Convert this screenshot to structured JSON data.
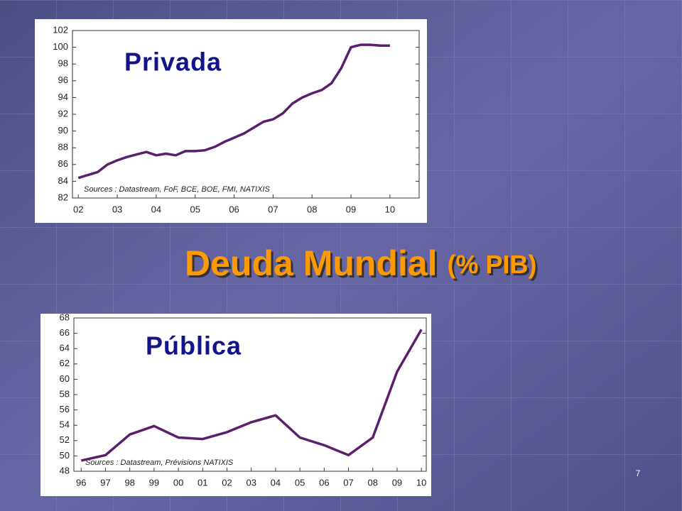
{
  "slide": {
    "title": "Deuda Mundial",
    "title_suffix": "(% PIB)",
    "page_number": "7"
  },
  "chart_data": [
    {
      "type": "line",
      "title": "Privada",
      "source": "Sources : Datastream, FoF, BCE, BOE, FMI, NATIXIS",
      "x": [
        2,
        2.5,
        2.75,
        3,
        3.25,
        3.5,
        3.75,
        4,
        4.25,
        4.5,
        4.75,
        5,
        5.25,
        5.5,
        5.75,
        6,
        6.25,
        6.5,
        6.75,
        7,
        7.25,
        7.5,
        7.75,
        8,
        8.25,
        8.5,
        8.75,
        9,
        9.25,
        9.5,
        9.75,
        10
      ],
      "series": [
        {
          "color": "#5b1f6b",
          "values": [
            84.4,
            85.1,
            86.0,
            86.5,
            86.9,
            87.2,
            87.5,
            87.1,
            87.3,
            87.1,
            87.6,
            87.6,
            87.7,
            88.1,
            88.7,
            89.2,
            89.7,
            90.4,
            91.1,
            91.4,
            92.1,
            93.3,
            94.0,
            94.5,
            94.9,
            95.7,
            97.5,
            100.0,
            100.3,
            100.3,
            100.2,
            100.2
          ]
        }
      ],
      "xlim": [
        1.85,
        10.75
      ],
      "xticks": [
        {
          "value": 2,
          "label": "02"
        },
        {
          "value": 3,
          "label": "03"
        },
        {
          "value": 4,
          "label": "04"
        },
        {
          "value": 5,
          "label": "05"
        },
        {
          "value": 6,
          "label": "06"
        },
        {
          "value": 7,
          "label": "07"
        },
        {
          "value": 8,
          "label": "08"
        },
        {
          "value": 9,
          "label": "09"
        },
        {
          "value": 10,
          "label": "10"
        }
      ],
      "ylim": [
        82,
        102
      ],
      "yticks": [
        82,
        84,
        86,
        88,
        90,
        92,
        94,
        96,
        98,
        100,
        102
      ]
    },
    {
      "type": "line",
      "title": "Pública",
      "source": "Sources : Datastream, Prévisions NATIXIS",
      "x": [
        96,
        97,
        98,
        99,
        100,
        101,
        102,
        103,
        104,
        105,
        106,
        107,
        108,
        109,
        110
      ],
      "series": [
        {
          "color": "#5b1f6b",
          "values": [
            49.4,
            50.1,
            52.8,
            53.9,
            52.4,
            52.2,
            53.1,
            54.4,
            55.3,
            52.4,
            51.4,
            50.1,
            52.4,
            61.0,
            66.5
          ]
        }
      ],
      "xlim": [
        95.7,
        110.2
      ],
      "xticks": [
        96,
        97,
        98,
        99,
        {
          "value": 100,
          "label": "00"
        },
        {
          "value": 101,
          "label": "01"
        },
        {
          "value": 102,
          "label": "02"
        },
        {
          "value": 103,
          "label": "03"
        },
        {
          "value": 104,
          "label": "04"
        },
        {
          "value": 105,
          "label": "05"
        },
        {
          "value": 106,
          "label": "06"
        },
        {
          "value": 107,
          "label": "07"
        },
        {
          "value": 108,
          "label": "08"
        },
        {
          "value": 109,
          "label": "09"
        },
        {
          "value": 110,
          "label": "10"
        }
      ],
      "ylim": [
        48,
        68
      ],
      "yticks": [
        48,
        50,
        52,
        54,
        56,
        58,
        60,
        62,
        64,
        66,
        68
      ]
    }
  ]
}
